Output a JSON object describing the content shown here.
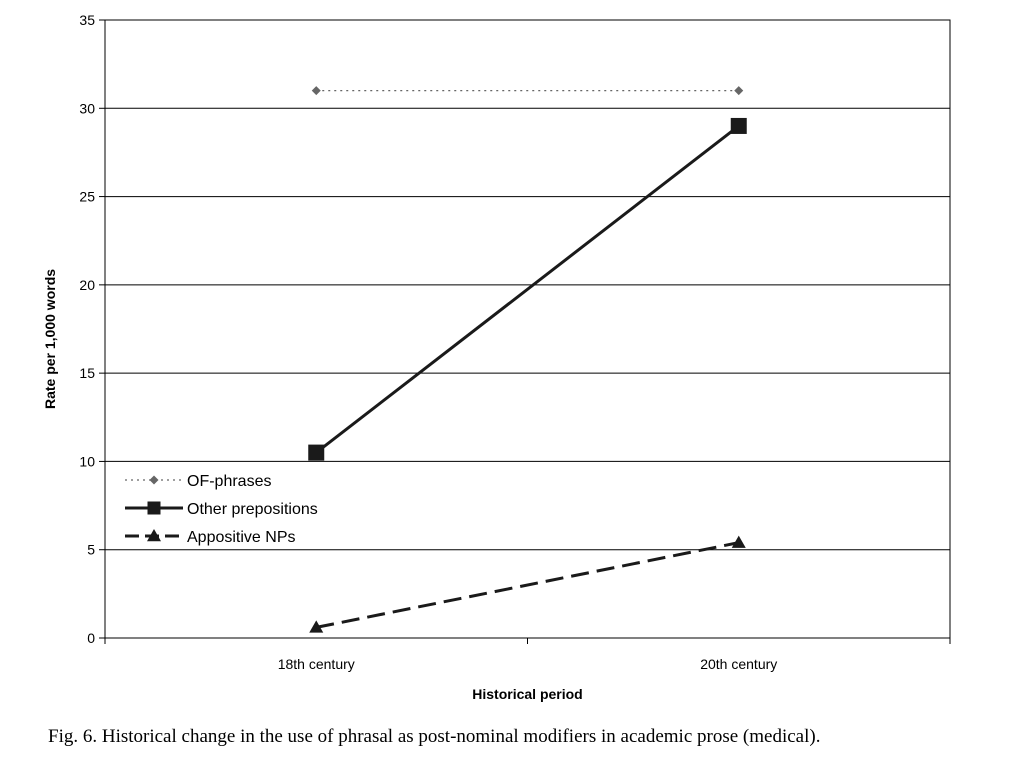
{
  "chart_data": {
    "type": "line",
    "categories": [
      "18th century",
      "20th century"
    ],
    "series": [
      {
        "name": "OF-phrases",
        "values": [
          31,
          31
        ],
        "color": "#666666",
        "line": "dotted",
        "marker": "diamond"
      },
      {
        "name": "Other prepositions",
        "values": [
          10.5,
          29
        ],
        "color": "#1a1a1a",
        "line": "solid",
        "marker": "square"
      },
      {
        "name": "Appositive NPs",
        "values": [
          0.6,
          5.4
        ],
        "color": "#1a1a1a",
        "line": "dashed",
        "marker": "triangle"
      }
    ],
    "xlabel": "Historical period",
    "ylabel": "Rate per 1,000 words",
    "ylim": [
      0,
      35
    ],
    "yticks": [
      0,
      5,
      10,
      15,
      20,
      25,
      30,
      35
    ],
    "grid": true,
    "legend": "lower-left"
  },
  "caption": "Fig. 6.  Historical change in the use of phrasal as post-nominal modifiers in academic prose (medical)."
}
